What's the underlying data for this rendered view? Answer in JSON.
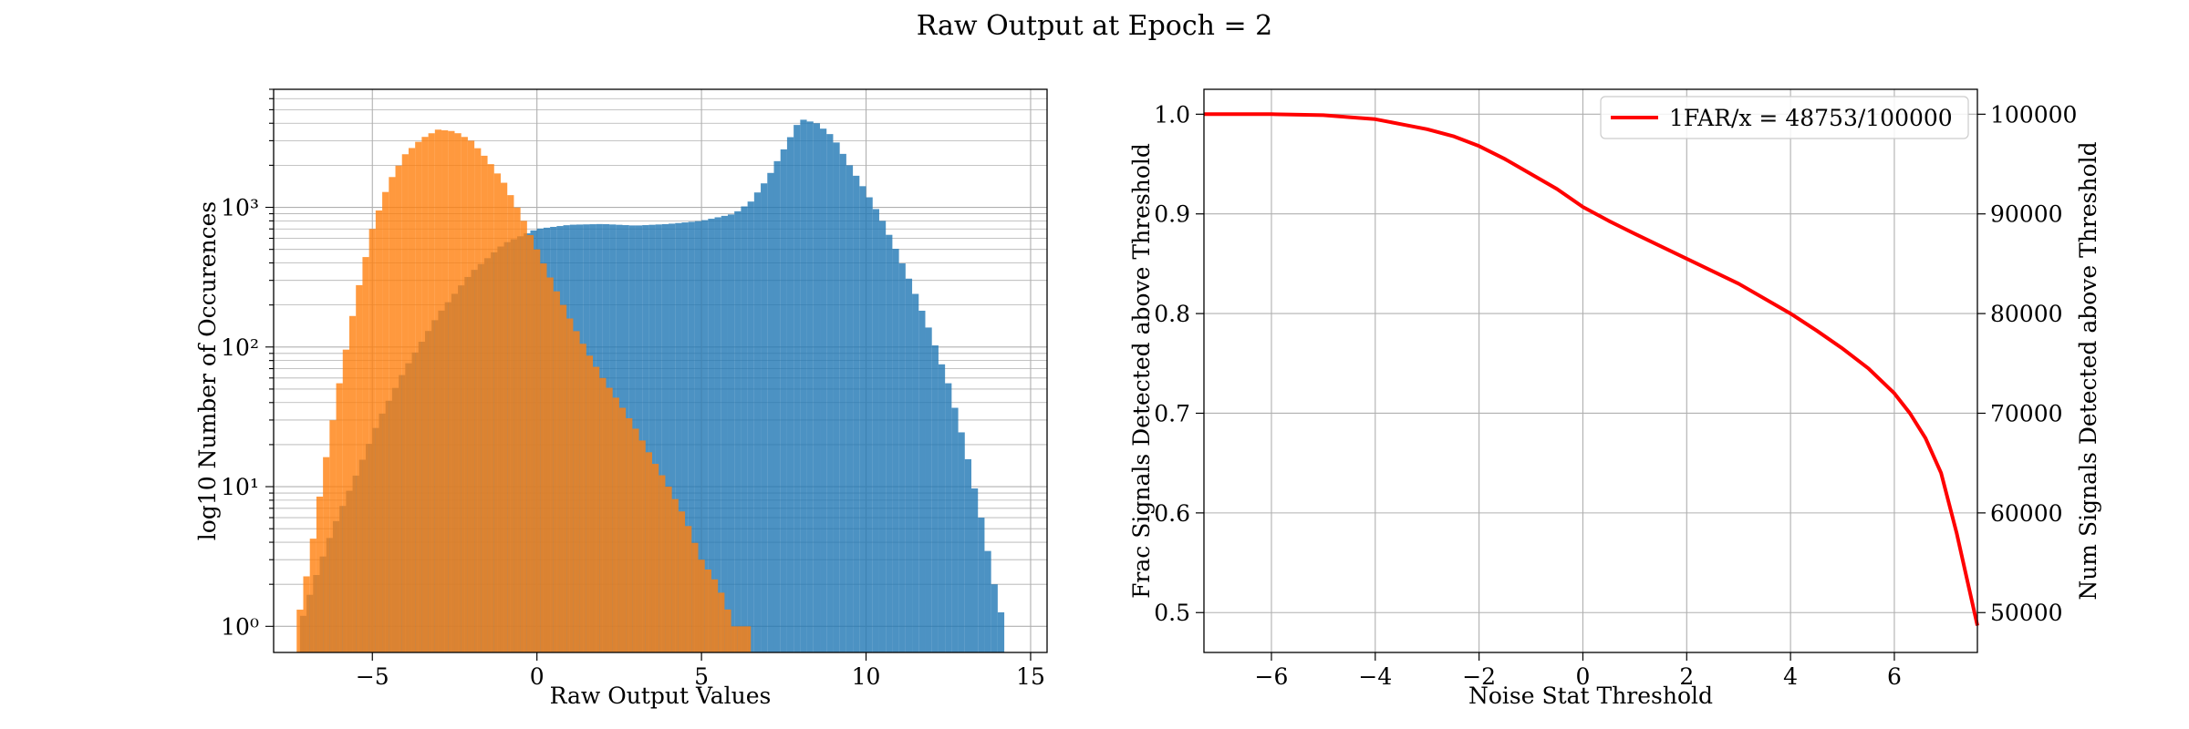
{
  "figure": {
    "title": "Raw Output at Epoch = 2"
  },
  "colors": {
    "signal": "#1f77b4",
    "noise": "#ff7f0e",
    "curve": "#ff0000",
    "grid": "#b0b0b0"
  },
  "chart_data": [
    {
      "type": "histogram",
      "title": "",
      "xlabel": "Raw Output Values",
      "ylabel": "log10 Number of Occurences",
      "yscale": "log",
      "xlim": [
        -8.0,
        15.5
      ],
      "ylim": [
        0.65,
        7000
      ],
      "xticks": [
        -5,
        0,
        5,
        10,
        15
      ],
      "xtick_labels": [
        "−5",
        "0",
        "5",
        "10",
        "15"
      ],
      "yticks": [
        1,
        10,
        100,
        1000
      ],
      "ytick_labels": [
        "10⁰",
        "10¹",
        "10²",
        "10³"
      ],
      "grid": true,
      "series": [
        {
          "color": "#1f77b4",
          "alpha": 0.8,
          "profile": [
            [
              -7.2,
              1
            ],
            [
              -6.8,
              2
            ],
            [
              -6.2,
              5
            ],
            [
              -5.5,
              12
            ],
            [
              -4.8,
              30
            ],
            [
              -4,
              70
            ],
            [
              -3,
              170
            ],
            [
              -2,
              340
            ],
            [
              -1,
              550
            ],
            [
              0,
              700
            ],
            [
              1,
              750
            ],
            [
              2,
              760
            ],
            [
              3,
              740
            ],
            [
              4,
              760
            ],
            [
              5,
              800
            ],
            [
              6,
              900
            ],
            [
              6.5,
              1100
            ],
            [
              7,
              1600
            ],
            [
              7.5,
              2600
            ],
            [
              8,
              4300
            ],
            [
              8.5,
              4000
            ],
            [
              9,
              3200
            ],
            [
              9.5,
              2000
            ],
            [
              10,
              1300
            ],
            [
              10.5,
              800
            ],
            [
              11,
              450
            ],
            [
              11.5,
              240
            ],
            [
              12,
              120
            ],
            [
              12.5,
              55
            ],
            [
              13,
              20
            ],
            [
              13.5,
              6
            ],
            [
              13.9,
              2
            ],
            [
              14.2,
              1
            ]
          ]
        },
        {
          "color": "#ff7f0e",
          "alpha": 0.8,
          "profile": [
            [
              -7.3,
              1
            ],
            [
              -6.9,
              3
            ],
            [
              -6.5,
              12
            ],
            [
              -6,
              55
            ],
            [
              -5.5,
              220
            ],
            [
              -5,
              700
            ],
            [
              -4.5,
              1500
            ],
            [
              -4,
              2400
            ],
            [
              -3.5,
              3100
            ],
            [
              -3,
              3600
            ],
            [
              -2.5,
              3500
            ],
            [
              -2,
              3000
            ],
            [
              -1.5,
              2200
            ],
            [
              -1,
              1500
            ],
            [
              -0.5,
              900
            ],
            [
              0,
              500
            ],
            [
              0.5,
              280
            ],
            [
              1,
              160
            ],
            [
              1.5,
              95
            ],
            [
              2,
              60
            ],
            [
              2.5,
              40
            ],
            [
              3,
              26
            ],
            [
              3.5,
              16
            ],
            [
              4,
              10
            ],
            [
              4.5,
              6
            ],
            [
              5,
              3
            ],
            [
              5.5,
              2
            ],
            [
              6,
              1
            ],
            [
              6.5,
              1
            ]
          ]
        }
      ]
    },
    {
      "type": "line",
      "title": "",
      "xlabel": "Noise Stat Threshold",
      "ylabel": "Frac Signals Detected above Threshold",
      "ylabel_right": "Num Signals Detected above Threshold",
      "xlim": [
        -7.3,
        7.6
      ],
      "ylim": [
        0.46,
        1.025
      ],
      "ylim_right": [
        46000,
        102500
      ],
      "xticks": [
        -6,
        -4,
        -2,
        0,
        2,
        4,
        6
      ],
      "xtick_labels": [
        "−6",
        "−4",
        "−2",
        "0",
        "2",
        "4",
        "6"
      ],
      "yticks": [
        0.5,
        0.6,
        0.7,
        0.8,
        0.9,
        1.0
      ],
      "ytick_labels": [
        "0.5",
        "0.6",
        "0.7",
        "0.8",
        "0.9",
        "1.0"
      ],
      "yticks_right": [
        50000,
        60000,
        70000,
        80000,
        90000,
        100000
      ],
      "ytick_labels_right": [
        "50000",
        "60000",
        "70000",
        "80000",
        "90000",
        "100000"
      ],
      "grid": true,
      "legend": "top-right",
      "series": [
        {
          "name": "1FAR/x = 48753/100000",
          "color": "#ff0000",
          "x": [
            -7.3,
            -6,
            -5,
            -4.5,
            -4,
            -3.5,
            -3,
            -2.5,
            -2,
            -1.5,
            -1,
            -0.5,
            0,
            0.5,
            1,
            2,
            3,
            4,
            4.5,
            5,
            5.5,
            6,
            6.3,
            6.6,
            6.9,
            7.2,
            7.6
          ],
          "y": [
            1.0,
            1.0,
            0.999,
            0.997,
            0.995,
            0.99,
            0.985,
            0.978,
            0.968,
            0.955,
            0.94,
            0.925,
            0.907,
            0.893,
            0.88,
            0.855,
            0.83,
            0.8,
            0.783,
            0.765,
            0.745,
            0.72,
            0.7,
            0.675,
            0.64,
            0.58,
            0.487
          ]
        }
      ]
    }
  ]
}
